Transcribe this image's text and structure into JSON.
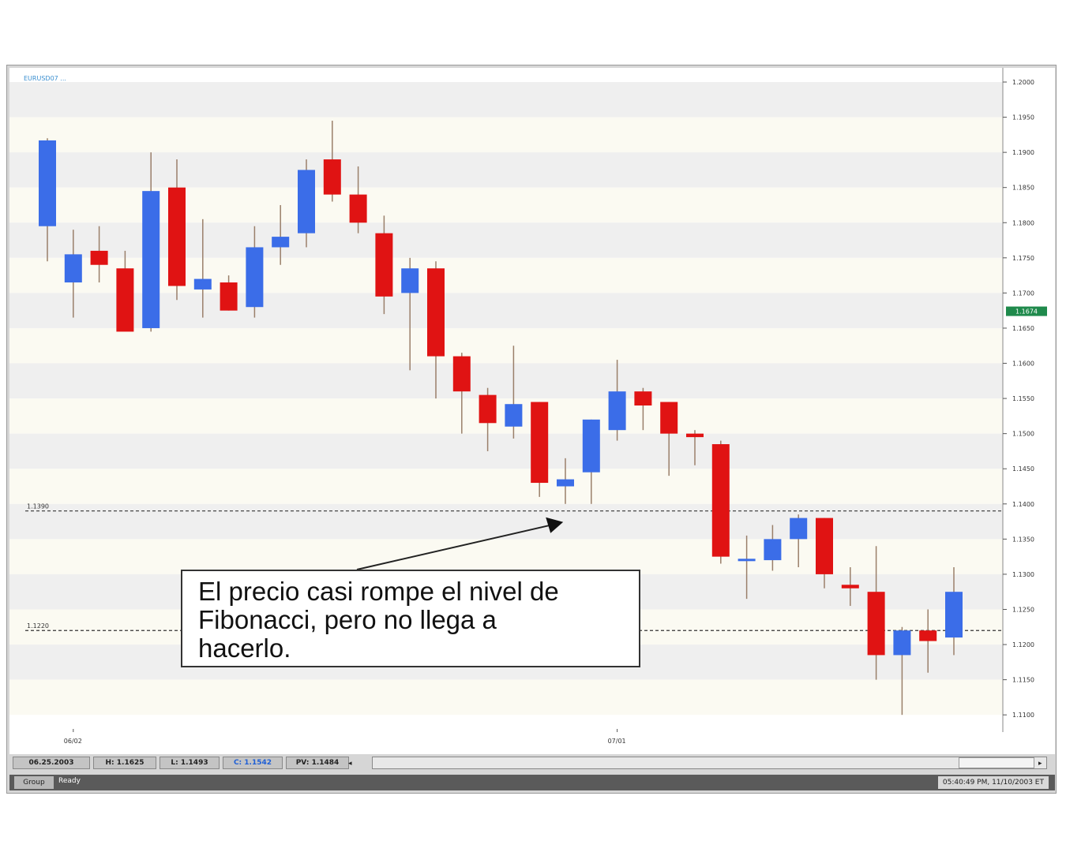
{
  "window": {
    "symbol_label": "EURUSD07 ..."
  },
  "callout": {
    "lines": [
      "El precio casi rompe el nivel de",
      "Fibonacci, pero no llega a",
      "hacerlo."
    ]
  },
  "status_bar": {
    "date": "06.25.2003",
    "high": "H: 1.1625",
    "low": "L: 1.1493",
    "close": "C: 1.1542",
    "pv": "PV: 1.1484"
  },
  "bottom_bar": {
    "group_label": "Group",
    "status_label": "Ready",
    "clock": "05:40:49 PM, 11/10/2003 ET"
  },
  "colors": {
    "bull": "#3b6de8",
    "bear": "#e01313",
    "band": "#efefef",
    "band_alt": "#fbfaf2",
    "price_tag": "#1f8a4c"
  },
  "chart_data": {
    "type": "candlestick",
    "title": "",
    "ylim": [
      1.108,
      1.2
    ],
    "y_ticks": [
      1.2,
      1.195,
      1.19,
      1.185,
      1.18,
      1.175,
      1.17,
      1.165,
      1.16,
      1.155,
      1.15,
      1.145,
      1.14,
      1.135,
      1.13,
      1.125,
      1.12,
      1.115,
      1.11
    ],
    "y_tick_labels": [
      "1.2000",
      "1.1950",
      "1.1900",
      "1.1850",
      "1.1800",
      "1.1750",
      "1.1700",
      "1.1650",
      "1.1600",
      "1.1550",
      "1.1500",
      "1.1450",
      "1.1400",
      "1.1350",
      "1.1300",
      "1.1250",
      "1.1200",
      "1.1150",
      "1.1100"
    ],
    "x_labels": [
      {
        "index": 1,
        "label": "06/02"
      },
      {
        "index": 22,
        "label": "07/01"
      }
    ],
    "current_price": "1.1674",
    "levels": [
      {
        "value": 1.139,
        "label": "1.1390"
      },
      {
        "value": 1.122,
        "label": "1.1220"
      }
    ],
    "candles": [
      {
        "o": 1.1795,
        "h": 1.192,
        "l": 1.1745,
        "c": 1.1917
      },
      {
        "o": 1.1715,
        "h": 1.179,
        "l": 1.1665,
        "c": 1.1755
      },
      {
        "o": 1.176,
        "h": 1.1795,
        "l": 1.1715,
        "c": 1.174
      },
      {
        "o": 1.1735,
        "h": 1.176,
        "l": 1.165,
        "c": 1.1645
      },
      {
        "o": 1.165,
        "h": 1.19,
        "l": 1.1645,
        "c": 1.1845
      },
      {
        "o": 1.185,
        "h": 1.189,
        "l": 1.169,
        "c": 1.171
      },
      {
        "o": 1.1705,
        "h": 1.1805,
        "l": 1.1665,
        "c": 1.172
      },
      {
        "o": 1.1715,
        "h": 1.1725,
        "l": 1.1675,
        "c": 1.1675
      },
      {
        "o": 1.168,
        "h": 1.1795,
        "l": 1.1665,
        "c": 1.1765
      },
      {
        "o": 1.1765,
        "h": 1.1825,
        "l": 1.174,
        "c": 1.178
      },
      {
        "o": 1.1785,
        "h": 1.189,
        "l": 1.1765,
        "c": 1.1875
      },
      {
        "o": 1.189,
        "h": 1.1945,
        "l": 1.183,
        "c": 1.184
      },
      {
        "o": 1.184,
        "h": 1.188,
        "l": 1.1785,
        "c": 1.18
      },
      {
        "o": 1.1785,
        "h": 1.181,
        "l": 1.167,
        "c": 1.1695
      },
      {
        "o": 1.17,
        "h": 1.175,
        "l": 1.159,
        "c": 1.1735
      },
      {
        "o": 1.1735,
        "h": 1.1745,
        "l": 1.155,
        "c": 1.161
      },
      {
        "o": 1.161,
        "h": 1.1615,
        "l": 1.15,
        "c": 1.156
      },
      {
        "o": 1.1555,
        "h": 1.1565,
        "l": 1.1475,
        "c": 1.1515
      },
      {
        "o": 1.151,
        "h": 1.1625,
        "l": 1.1493,
        "c": 1.1542
      },
      {
        "o": 1.1545,
        "h": 1.1545,
        "l": 1.141,
        "c": 1.143
      },
      {
        "o": 1.1425,
        "h": 1.1465,
        "l": 1.14,
        "c": 1.1435
      },
      {
        "o": 1.1445,
        "h": 1.152,
        "l": 1.14,
        "c": 1.152
      },
      {
        "o": 1.1505,
        "h": 1.1605,
        "l": 1.149,
        "c": 1.156
      },
      {
        "o": 1.156,
        "h": 1.1565,
        "l": 1.1505,
        "c": 1.154
      },
      {
        "o": 1.1545,
        "h": 1.1545,
        "l": 1.144,
        "c": 1.15
      },
      {
        "o": 1.15,
        "h": 1.1505,
        "l": 1.1455,
        "c": 1.1495
      },
      {
        "o": 1.1485,
        "h": 1.149,
        "l": 1.1315,
        "c": 1.1325
      },
      {
        "o": 1.132,
        "h": 1.1355,
        "l": 1.1265,
        "c": 1.1322
      },
      {
        "o": 1.132,
        "h": 1.137,
        "l": 1.1305,
        "c": 1.135
      },
      {
        "o": 1.135,
        "h": 1.1385,
        "l": 1.131,
        "c": 1.138
      },
      {
        "o": 1.138,
        "h": 1.138,
        "l": 1.128,
        "c": 1.13
      },
      {
        "o": 1.1285,
        "h": 1.131,
        "l": 1.1255,
        "c": 1.128
      },
      {
        "o": 1.1275,
        "h": 1.134,
        "l": 1.115,
        "c": 1.1185
      },
      {
        "o": 1.1185,
        "h": 1.1225,
        "l": 1.11,
        "c": 1.122
      },
      {
        "o": 1.122,
        "h": 1.125,
        "l": 1.116,
        "c": 1.1205
      },
      {
        "o": 1.121,
        "h": 1.131,
        "l": 1.1185,
        "c": 1.1275
      }
    ]
  }
}
